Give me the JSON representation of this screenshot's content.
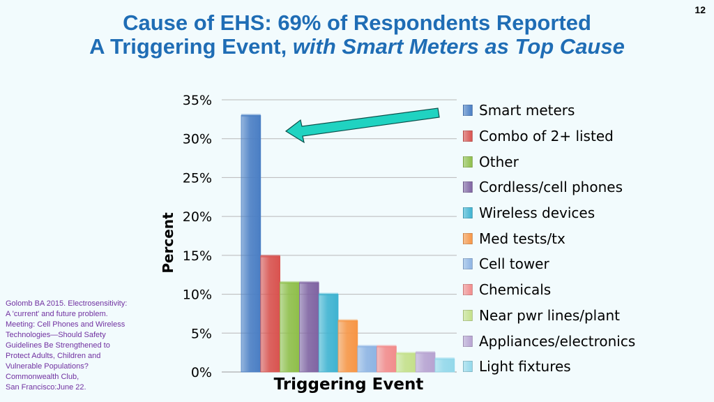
{
  "slide_number": "12",
  "title": {
    "line1": "Cause of EHS: 69% of Respondents Reported",
    "line2_plain": "A Triggering Event, ",
    "line2_italic": "with Smart Meters as Top Cause"
  },
  "citation": "Golomb BA 2015. Electrosensitivity:\nA 'current' and future problem.\nMeeting: Cell Phones and Wireless\nTechnologies—Should Safety\nGuidelines Be Strengthened to\nProtect Adults, Children and\nVulnerable Populations?\nCommonwealth Club,\nSan Francisco:June 22.",
  "chart_data": {
    "type": "bar",
    "xlabel": "Triggering Event",
    "ylabel": "Percent",
    "ylim": [
      0,
      35
    ],
    "yticks": [
      "0%",
      "5%",
      "10%",
      "15%",
      "20%",
      "25%",
      "30%",
      "35%"
    ],
    "grid": true,
    "legend_position": "right",
    "series": [
      {
        "name": "Smart meters",
        "value": 33,
        "color": "#4a7ec4"
      },
      {
        "name": "Combo of 2+ listed",
        "value": 14.9,
        "color": "#d9534f"
      },
      {
        "name": "Other",
        "value": 11.5,
        "color": "#8fbf4a"
      },
      {
        "name": "Cordless/cell phones",
        "value": 11.5,
        "color": "#8064a2"
      },
      {
        "name": "Wireless devices",
        "value": 10,
        "color": "#3fb3d1"
      },
      {
        "name": "Med tests/tx",
        "value": 6.6,
        "color": "#f79646"
      },
      {
        "name": "Cell tower",
        "value": 3.3,
        "color": "#8eb4e3"
      },
      {
        "name": "Chemicals",
        "value": 3.3,
        "color": "#f28c8c"
      },
      {
        "name": "Near pwr lines/plant",
        "value": 2.4,
        "color": "#c4e08a"
      },
      {
        "name": "Appliances/electronics",
        "value": 2.5,
        "color": "#b7a3d1"
      },
      {
        "name": "Light fixtures",
        "value": 1.7,
        "color": "#93d8ea"
      }
    ],
    "annotation": {
      "type": "arrow",
      "color": "#20d3c1",
      "target": "Smart meters"
    }
  }
}
